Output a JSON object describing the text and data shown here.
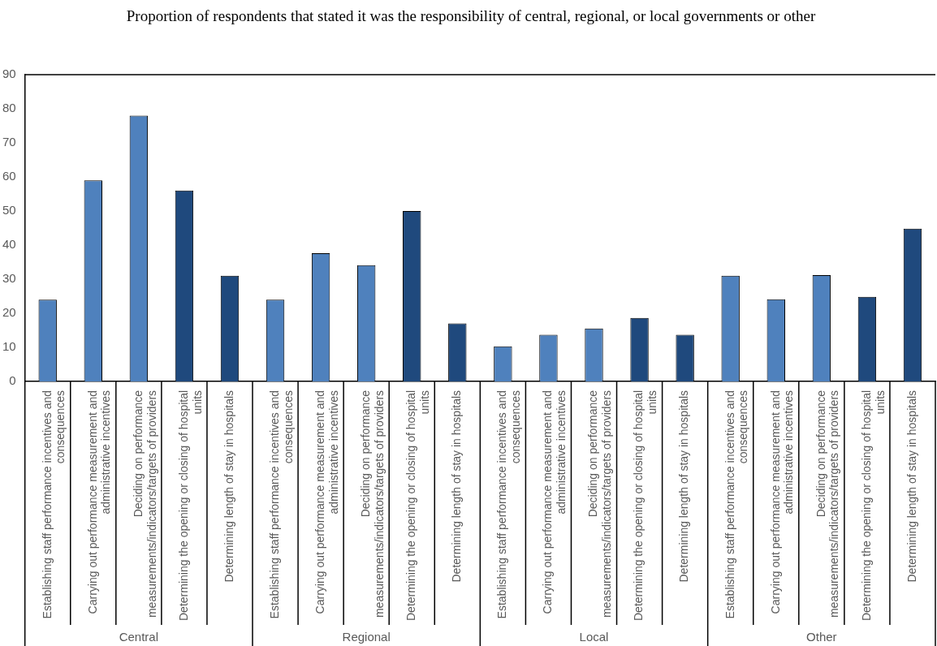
{
  "chart_data": {
    "type": "bar",
    "title": "Proportion of respondents that stated it was the responsibility of central, regional, or local governments or other",
    "categories": [
      "Establishing staff performance incentives and consequences",
      "Carrying out performance measurement and administrative incentives",
      "Deciding on performance measurements/indicators/targets of providers",
      "Determining the opening or closing of hospital units",
      "Determining length of stay in hospitals",
      "Establishing staff performance incentives and consequences",
      "Carrying out performance measurement and administrative incentives",
      "Deciding on performance measurements/indicators/targets of providers",
      "Determining the opening or closing of hospital units",
      "Determining length of stay in hospitals",
      "Establishing staff performance incentives and consequences",
      "Carrying out performance measurement and administrative incentives",
      "Deciding on performance measurements/indicators/targets of providers",
      "Determining the opening or closing of hospital units",
      "Determining length of stay in hospitals",
      "Establishing staff performance incentives and consequences",
      "Carrying out performance measurement and administrative incentives",
      "Deciding on performance measurements/indicators/targets of providers",
      "Determining the opening or closing of hospital units",
      "Determining length of stay in hospitals"
    ],
    "values": [
      24,
      59,
      78,
      56,
      31,
      24,
      37.6,
      34.1,
      50,
      17,
      10.3,
      13.7,
      15.5,
      18.6,
      13.7,
      31,
      24.1,
      31.2,
      24.8,
      44.8
    ],
    "colors": [
      "#4f81bd",
      "#4f81bd",
      "#4f81bd",
      "#1f497d",
      "#1f497d",
      "#4f81bd",
      "#4f81bd",
      "#4f81bd",
      "#1f497d",
      "#1f497d",
      "#4f81bd",
      "#4f81bd",
      "#4f81bd",
      "#1f497d",
      "#1f497d",
      "#4f81bd",
      "#4f81bd",
      "#4f81bd",
      "#1f497d",
      "#1f497d"
    ],
    "ylim": [
      0,
      90
    ],
    "yticks": [
      0,
      10,
      20,
      30,
      40,
      50,
      60,
      70,
      80,
      90
    ],
    "annotations": [
      "Central",
      "Regional",
      "Local",
      "Other"
    ]
  }
}
